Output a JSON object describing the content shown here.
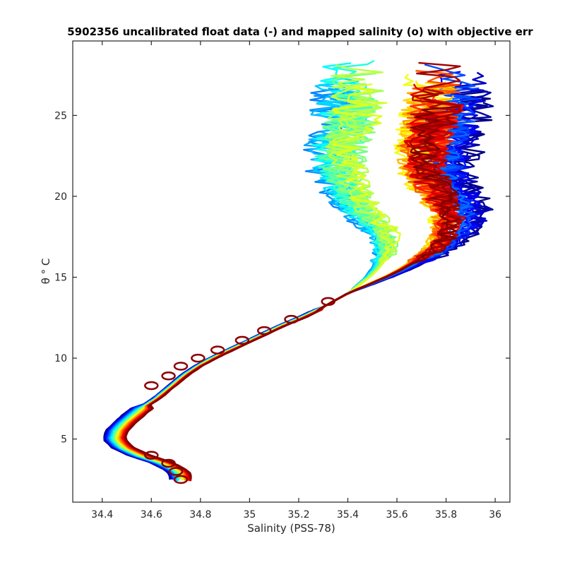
{
  "chart_data": {
    "type": "line",
    "title": "5902356 uncalibrated float data (-) and mapped salinity (o) with objective err",
    "xlabel": "Salinity (PSS-78)",
    "ylabel": "θ ° C",
    "xlim": [
      34.28,
      36.06
    ],
    "ylim": [
      1.1,
      29.6
    ],
    "x_ticks": [
      "34.4",
      "34.6",
      "34.8",
      "35",
      "35.2",
      "35.4",
      "35.6",
      "35.8",
      "36"
    ],
    "y_ticks": [
      "5",
      "10",
      "15",
      "20",
      "25"
    ],
    "grid": false,
    "legend": "none",
    "colormap": "jet",
    "profile_count": 60,
    "mean_profile": {
      "theta": [
        2.5,
        3.0,
        3.5,
        4.0,
        4.5,
        5.0,
        5.5,
        6.0,
        6.5,
        7.0,
        7.5,
        8.0,
        8.5,
        9.0,
        9.5,
        10.0,
        10.5,
        11.0,
        11.5,
        12.0,
        12.5,
        13.0,
        13.5,
        14.0,
        14.5,
        15.0,
        15.5,
        16.0,
        16.5,
        17.0,
        17.5,
        18.0,
        18.5,
        19.0,
        19.5,
        20.0,
        20.5,
        21.0,
        21.5,
        22.0,
        22.5,
        23.0,
        23.5,
        24.0,
        24.5,
        25.0,
        25.5,
        26.0
      ],
      "salinity": [
        34.72,
        34.71,
        34.65,
        34.55,
        34.48,
        34.45,
        34.46,
        34.49,
        34.53,
        34.57,
        34.62,
        34.66,
        34.7,
        34.74,
        34.79,
        34.85,
        34.92,
        34.99,
        35.06,
        35.13,
        35.21,
        35.28,
        35.34,
        35.4,
        35.47,
        35.54,
        35.6,
        35.65,
        35.7,
        35.73,
        35.75,
        35.76,
        35.76,
        35.75,
        35.73,
        35.71,
        35.69,
        35.67,
        35.66,
        35.66,
        35.66,
        35.66,
        35.67,
        35.68,
        35.69,
        35.69,
        35.7,
        35.7
      ]
    },
    "mapped_points": {
      "theta": [
        2.5,
        3.0,
        3.5,
        4.0,
        8.3,
        8.9,
        9.5,
        10.0,
        10.5,
        11.1,
        11.7,
        12.4,
        13.5
      ],
      "salinity": [
        34.72,
        34.7,
        34.67,
        34.6,
        34.6,
        34.67,
        34.72,
        34.79,
        34.87,
        34.97,
        35.06,
        35.17,
        35.32
      ]
    },
    "colors": {
      "blue": "#0000cc",
      "cyan": "#33ffcc",
      "green": "#99ff33",
      "yellow": "#ffff00",
      "orange": "#ff9900",
      "red": "#ff0000",
      "darkred": "#800000"
    }
  }
}
